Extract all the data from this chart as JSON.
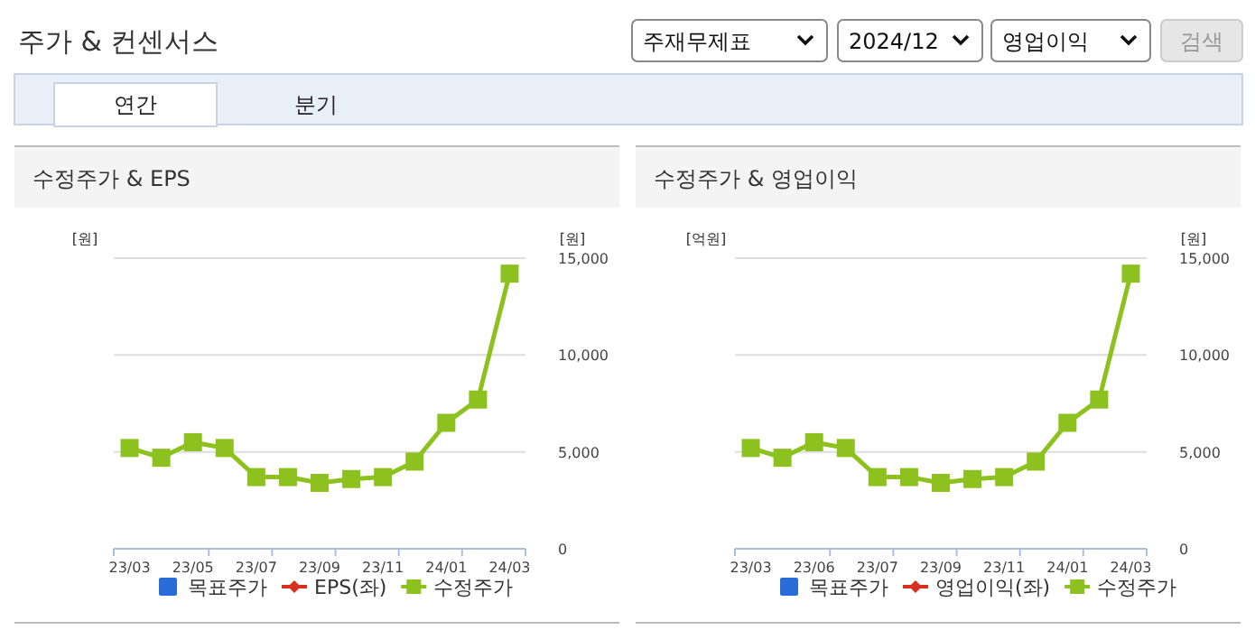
{
  "chart_data": [
    {
      "type": "other",
      "title": "주가 & 컨센서스",
      "annotations": [
        "주재무제표",
        "2024/12",
        "영업이익",
        "검색",
        "연간",
        "분기"
      ]
    },
    {
      "type": "line",
      "title": "수정주가 & EPS",
      "ylabel": "[원]",
      "y2label": "[원]",
      "categories": [
        "23/03",
        null,
        "23/05",
        null,
        "23/07",
        null,
        "23/09",
        null,
        "23/11",
        null,
        "24/01",
        null,
        "24/03"
      ],
      "series": [
        {
          "name": "목표주가",
          "color": "#2a6dd9",
          "marker": "square",
          "values": [
            null,
            null,
            null,
            null,
            null,
            null,
            null,
            null,
            null,
            null,
            null,
            null,
            null
          ]
        },
        {
          "name": "EPS(좌)",
          "color": "#d7301f",
          "marker": "diamond",
          "values": [
            null,
            null,
            null,
            null,
            null,
            null,
            null,
            null,
            null,
            null,
            null,
            null,
            null
          ]
        },
        {
          "name": "수정주가",
          "color": "#8cc11e",
          "marker": "square",
          "axis": "y2",
          "values": [
            5200,
            4700,
            5500,
            5200,
            3700,
            3700,
            3400,
            3600,
            3700,
            4500,
            6500,
            7700,
            14200
          ]
        }
      ],
      "y2lim": [
        0,
        15000
      ],
      "y2ticks": [
        0,
        {
          "value": 5000,
          "label": "5,000"
        },
        {
          "value": 10000,
          "label": "10,000"
        },
        {
          "value": 15000,
          "label": "15,000"
        }
      ],
      "grid": "y",
      "legend": "bottom"
    },
    {
      "type": "line",
      "title": "수정주가 & 영업이익",
      "ylabel": "[억원]",
      "y2label": "[원]",
      "categories": [
        "23/03",
        null,
        "23/06",
        null,
        "23/07",
        null,
        "23/09",
        null,
        "23/11",
        null,
        "24/01",
        null,
        "24/03"
      ],
      "series": [
        {
          "name": "목표주가",
          "color": "#2a6dd9",
          "marker": "square",
          "values": [
            null,
            null,
            null,
            null,
            null,
            null,
            null,
            null,
            null,
            null,
            null,
            null,
            null
          ]
        },
        {
          "name": "영업이익(좌)",
          "color": "#d7301f",
          "marker": "diamond",
          "values": [
            null,
            null,
            null,
            null,
            null,
            null,
            null,
            null,
            null,
            null,
            null,
            null,
            null
          ]
        },
        {
          "name": "수정주가",
          "color": "#8cc11e",
          "marker": "square",
          "axis": "y2",
          "values": [
            5200,
            4700,
            5500,
            5200,
            3700,
            3700,
            3400,
            3600,
            3700,
            4500,
            6500,
            7700,
            14200
          ]
        }
      ],
      "y2lim": [
        0,
        15000
      ],
      "y2ticks": [
        0,
        {
          "value": 5000,
          "label": "5,000"
        },
        {
          "value": 10000,
          "label": "10,000"
        },
        {
          "value": 15000,
          "label": "15,000"
        }
      ],
      "grid": "y",
      "legend": "bottom"
    }
  ]
}
